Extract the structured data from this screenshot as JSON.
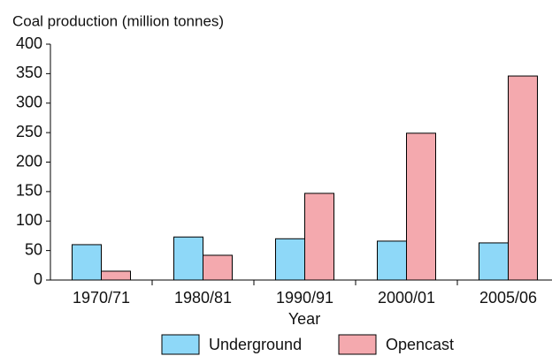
{
  "chart_data": {
    "type": "bar",
    "title": "Coal production (million tonnes)",
    "x_label": "Year",
    "categories": [
      "1970/71",
      "1980/81",
      "1990/91",
      "2000/01",
      "2005/06"
    ],
    "series": [
      {
        "name": "Underground",
        "color": "#8ed8f8",
        "values": [
          60,
          73,
          70,
          66,
          63
        ]
      },
      {
        "name": "Opencast",
        "color": "#f4a9ae",
        "values": [
          15,
          42,
          147,
          249,
          346
        ]
      }
    ],
    "ylim": [
      0,
      400
    ],
    "yticks": [
      0,
      50,
      100,
      150,
      200,
      250,
      300,
      350,
      400
    ],
    "legend": "bottom"
  }
}
